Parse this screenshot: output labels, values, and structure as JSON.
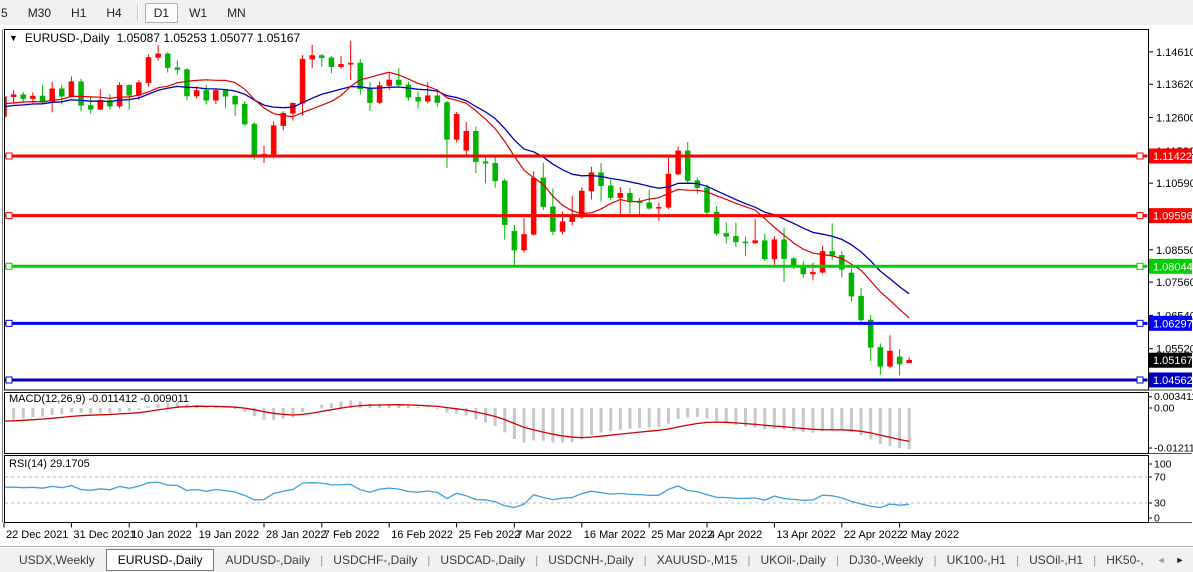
{
  "toolbar": {
    "timeframes": [
      {
        "label": "5",
        "active": false
      },
      {
        "label": "M30",
        "active": false
      },
      {
        "label": "H1",
        "active": false
      },
      {
        "label": "H4",
        "active": false,
        "separator_after": true
      },
      {
        "label": "D1",
        "active": true
      },
      {
        "label": "W1",
        "active": false
      },
      {
        "label": "MN",
        "active": false
      }
    ]
  },
  "chart_header": {
    "dropdown_icon": "▼",
    "symbol": "EURUSD-,Daily",
    "ohlc": "1.05087 1.05253 1.05077 1.05167"
  },
  "indicators": {
    "macd_label": "MACD(12,26,9) -0.011412 -0.009011",
    "rsi_label": "RSI(14) 29.1705",
    "macd_axis": [
      {
        "text": "0.003411",
        "value": 0.003411
      },
      {
        "text": "0.00",
        "value": 0
      },
      {
        "text": "-0.012118",
        "value": -0.012118
      }
    ],
    "rsi_axis": [
      {
        "text": "100",
        "value": 100
      },
      {
        "text": "70",
        "value": 70
      },
      {
        "text": "30",
        "value": 30
      },
      {
        "text": "0",
        "value": 0
      }
    ],
    "rsi_levels": [
      70,
      30
    ]
  },
  "price_axis": {
    "plain_labels": [
      {
        "text": "1.14610",
        "price": 1.1461
      },
      {
        "text": "1.13620",
        "price": 1.1362
      },
      {
        "text": "1.12600",
        "price": 1.126
      },
      {
        "text": "1.11580",
        "price": 1.1158
      },
      {
        "text": "1.10590",
        "price": 1.1059
      },
      {
        "text": "1.08550",
        "price": 1.0855
      },
      {
        "text": "1.07560",
        "price": 1.0756
      },
      {
        "text": "1.06540",
        "price": 1.0654
      },
      {
        "text": "1.05520",
        "price": 1.0552
      }
    ],
    "badges": [
      {
        "text": "1.11422",
        "price": 1.11422,
        "color": "#ff0000"
      },
      {
        "text": "1.09596",
        "price": 1.09596,
        "color": "#ff0000"
      },
      {
        "text": "1.08044",
        "price": 1.08044,
        "color": "#00d000"
      },
      {
        "text": "1.06297",
        "price": 1.06297,
        "color": "#0000ff"
      },
      {
        "text": "1.05167",
        "price": 1.05167,
        "color": "#000000"
      },
      {
        "text": "1.04562",
        "price": 1.04562,
        "color": "#0000c0"
      }
    ]
  },
  "time_axis": {
    "labels": [
      {
        "text": "22 Dec 2021",
        "candle_index": 0
      },
      {
        "text": "31 Dec 2021",
        "candle_index": 7
      },
      {
        "text": "10 Jan 2022",
        "candle_index": 13
      },
      {
        "text": "19 Jan 2022",
        "candle_index": 20
      },
      {
        "text": "28 Jan 2022",
        "candle_index": 27
      },
      {
        "text": "7 Feb 2022",
        "candle_index": 33
      },
      {
        "text": "16 Feb 2022",
        "candle_index": 40
      },
      {
        "text": "25 Feb 2022",
        "candle_index": 47
      },
      {
        "text": "7 Mar 2022",
        "candle_index": 53
      },
      {
        "text": "16 Mar 2022",
        "candle_index": 60
      },
      {
        "text": "25 Mar 2022",
        "candle_index": 67
      },
      {
        "text": "4 Apr 2022",
        "candle_index": 73
      },
      {
        "text": "13 Apr 2022",
        "candle_index": 80
      },
      {
        "text": "22 Apr 2022",
        "candle_index": 87
      },
      {
        "text": "2 May 2022",
        "candle_index": 93
      }
    ]
  },
  "tabs": {
    "items": [
      "USDX,Weekly",
      "EURUSD-,Daily",
      "AUDUSD-,Daily",
      "USDCHF-,Daily",
      "USDCAD-,Daily",
      "USDCNH-,Daily",
      "XAUUSD-,M15",
      "UKOil-,Daily",
      "DJ30-,Weekly",
      "UK100-,H1",
      "USOil-,H1",
      "HK50-,"
    ],
    "active_index": 1,
    "scroll_left_icon": "◄",
    "scroll_right_icon": "►"
  },
  "chart_data": {
    "type": "candlestick",
    "title": "EURUSD-,Daily",
    "current_bar": {
      "open": 1.05087,
      "high": 1.05253,
      "low": 1.05077,
      "close": 1.05167
    },
    "colors": {
      "bull_candle": "#ff0000",
      "bear_candle": "#00b400",
      "ma_fast": "#dd0000",
      "ma_slow": "#0000b4",
      "macd_histogram": "#c8c8c8",
      "macd_signal": "#d00000",
      "rsi_line": "#3da0e0",
      "level_red": "#ff0000",
      "level_green": "#00d000",
      "level_blue": "#0000ff",
      "level_navy": "#0000c0"
    },
    "levels": [
      {
        "price": 1.11422,
        "color": "#ff0000",
        "width": 3
      },
      {
        "price": 1.09596,
        "color": "#ff0000",
        "width": 3
      },
      {
        "price": 1.08044,
        "color": "#00d000",
        "width": 3
      },
      {
        "price": 1.06297,
        "color": "#0000ff",
        "width": 3
      },
      {
        "price": 1.04562,
        "color": "#0000c0",
        "width": 3
      }
    ],
    "moving_averages": [
      {
        "name": "fast",
        "method": "sma",
        "period": 10,
        "color": "#dd0000"
      },
      {
        "name": "slow",
        "method": "ema",
        "period": 20,
        "color": "#0000b4"
      }
    ],
    "macd_params": {
      "fast": 12,
      "slow": 26,
      "signal": 9,
      "last_macd": -0.011412,
      "last_signal": -0.009011
    },
    "rsi_params": {
      "period": 14,
      "last_value": 29.1705
    },
    "ohlc": [
      [
        1.1262,
        1.1342,
        1.1259,
        1.1324
      ],
      [
        1.1324,
        1.1344,
        1.1301,
        1.133
      ],
      [
        1.133,
        1.1338,
        1.1308,
        1.1318
      ],
      [
        1.1318,
        1.1337,
        1.1304,
        1.1326
      ],
      [
        1.1326,
        1.136,
        1.1303,
        1.131
      ],
      [
        1.131,
        1.1369,
        1.1276,
        1.1348
      ],
      [
        1.1348,
        1.136,
        1.13,
        1.1325
      ],
      [
        1.1325,
        1.1386,
        1.1321,
        1.137
      ],
      [
        1.137,
        1.1379,
        1.1279,
        1.1297
      ],
      [
        1.1297,
        1.1323,
        1.1272,
        1.1285
      ],
      [
        1.1285,
        1.1347,
        1.1284,
        1.1313
      ],
      [
        1.1313,
        1.1332,
        1.1285,
        1.1295
      ],
      [
        1.1295,
        1.1368,
        1.1288,
        1.1359
      ],
      [
        1.1359,
        1.1362,
        1.1284,
        1.1328
      ],
      [
        1.1328,
        1.1374,
        1.1314,
        1.1367
      ],
      [
        1.1367,
        1.1453,
        1.1355,
        1.1444
      ],
      [
        1.1444,
        1.1482,
        1.1435,
        1.1455
      ],
      [
        1.1455,
        1.146,
        1.1398,
        1.1413
      ],
      [
        1.1413,
        1.1435,
        1.1392,
        1.1407
      ],
      [
        1.1407,
        1.1411,
        1.1313,
        1.1326
      ],
      [
        1.1326,
        1.1355,
        1.1318,
        1.1343
      ],
      [
        1.1343,
        1.136,
        1.13,
        1.1313
      ],
      [
        1.1313,
        1.1348,
        1.1301,
        1.1343
      ],
      [
        1.1343,
        1.1344,
        1.129,
        1.1325
      ],
      [
        1.1325,
        1.133,
        1.1264,
        1.1301
      ],
      [
        1.1301,
        1.131,
        1.1235,
        1.124
      ],
      [
        1.124,
        1.1245,
        1.1131,
        1.1145
      ],
      [
        1.1145,
        1.1174,
        1.1121,
        1.1148
      ],
      [
        1.1148,
        1.1248,
        1.1135,
        1.1235
      ],
      [
        1.1235,
        1.1279,
        1.1221,
        1.1273
      ],
      [
        1.1273,
        1.1306,
        1.1251,
        1.1304
      ],
      [
        1.1304,
        1.1451,
        1.1267,
        1.1439
      ],
      [
        1.1439,
        1.1483,
        1.1411,
        1.145
      ],
      [
        1.145,
        1.1455,
        1.1415,
        1.1443
      ],
      [
        1.1443,
        1.1449,
        1.1396,
        1.1416
      ],
      [
        1.1416,
        1.1448,
        1.141,
        1.1423
      ],
      [
        1.1423,
        1.1495,
        1.1375,
        1.1427
      ],
      [
        1.1427,
        1.1439,
        1.133,
        1.1348
      ],
      [
        1.1348,
        1.1369,
        1.128,
        1.1306
      ],
      [
        1.1306,
        1.137,
        1.1301,
        1.1358
      ],
      [
        1.1358,
        1.1395,
        1.1345,
        1.1375
      ],
      [
        1.1375,
        1.1412,
        1.1354,
        1.136
      ],
      [
        1.136,
        1.137,
        1.1312,
        1.1322
      ],
      [
        1.1322,
        1.134,
        1.1288,
        1.131
      ],
      [
        1.131,
        1.1368,
        1.1303,
        1.1327
      ],
      [
        1.1327,
        1.1343,
        1.1294,
        1.1306
      ],
      [
        1.1306,
        1.1311,
        1.1106,
        1.1193
      ],
      [
        1.1193,
        1.1277,
        1.1184,
        1.127
      ],
      [
        1.116,
        1.1247,
        1.114,
        1.1218
      ],
      [
        1.1218,
        1.1232,
        1.109,
        1.1125
      ],
      [
        1.1125,
        1.1145,
        1.1059,
        1.112
      ],
      [
        1.112,
        1.1139,
        1.1045,
        1.1066
      ],
      [
        1.1066,
        1.1073,
        1.0886,
        1.0932
      ],
      [
        1.0912,
        1.0931,
        1.0806,
        1.0854
      ],
      [
        1.0854,
        1.0952,
        1.0846,
        1.0902
      ],
      [
        1.0902,
        1.1096,
        1.0899,
        1.1075
      ],
      [
        1.1075,
        1.1121,
        1.0977,
        1.0987
      ],
      [
        1.0987,
        1.1043,
        1.09,
        1.0911
      ],
      [
        1.0911,
        1.0972,
        1.0902,
        1.0941
      ],
      [
        1.0941,
        1.102,
        1.093,
        1.0955
      ],
      [
        1.0955,
        1.1046,
        1.095,
        1.1035
      ],
      [
        1.1035,
        1.1109,
        1.1009,
        1.1091
      ],
      [
        1.1091,
        1.112,
        1.1003,
        1.1051
      ],
      [
        1.1051,
        1.1069,
        1.1008,
        1.1015
      ],
      [
        1.1015,
        1.1047,
        1.0962,
        1.1028
      ],
      [
        1.1028,
        1.1044,
        1.0963,
        1.1004
      ],
      [
        1.1004,
        1.1014,
        1.096,
        1.0999
      ],
      [
        1.0999,
        1.1039,
        1.0978,
        1.0982
      ],
      [
        1.0982,
        1.1,
        1.0944,
        1.0985
      ],
      [
        1.0985,
        1.1137,
        1.098,
        1.1087
      ],
      [
        1.1087,
        1.1171,
        1.1084,
        1.1158
      ],
      [
        1.1158,
        1.1185,
        1.1061,
        1.1067
      ],
      [
        1.1067,
        1.1077,
        1.1027,
        1.1045
      ],
      [
        1.1045,
        1.1055,
        1.096,
        1.097
      ],
      [
        1.097,
        1.0988,
        1.0898,
        1.0905
      ],
      [
        1.0905,
        1.0939,
        1.0874,
        1.0896
      ],
      [
        1.0896,
        1.0938,
        1.0864,
        1.0879
      ],
      [
        1.0879,
        1.0896,
        1.0836,
        1.0876
      ],
      [
        1.0876,
        1.095,
        1.0872,
        1.0883
      ],
      [
        1.0883,
        1.0904,
        1.0821,
        1.0827
      ],
      [
        1.0827,
        1.0897,
        1.0809,
        1.0886
      ],
      [
        1.0886,
        1.0923,
        1.0757,
        1.0828
      ],
      [
        1.0828,
        1.0832,
        1.0796,
        1.0807
      ],
      [
        1.0807,
        1.082,
        1.0769,
        1.0781
      ],
      [
        1.0781,
        1.0815,
        1.0761,
        1.0786
      ],
      [
        1.0786,
        1.0867,
        1.0782,
        1.085
      ],
      [
        1.085,
        1.0936,
        1.0824,
        1.0838
      ],
      [
        1.0838,
        1.0852,
        1.077,
        1.0795
      ],
      [
        1.0784,
        1.0797,
        1.0697,
        1.0713
      ],
      [
        1.0713,
        1.0738,
        1.0635,
        1.064
      ],
      [
        1.064,
        1.0655,
        1.0514,
        1.0556
      ],
      [
        1.0556,
        1.0568,
        1.0471,
        1.0498
      ],
      [
        1.0498,
        1.0593,
        1.0492,
        1.0545
      ],
      [
        1.0527,
        1.0551,
        1.047,
        1.0505
      ],
      [
        1.05087,
        1.05253,
        1.05077,
        1.05167
      ]
    ]
  }
}
